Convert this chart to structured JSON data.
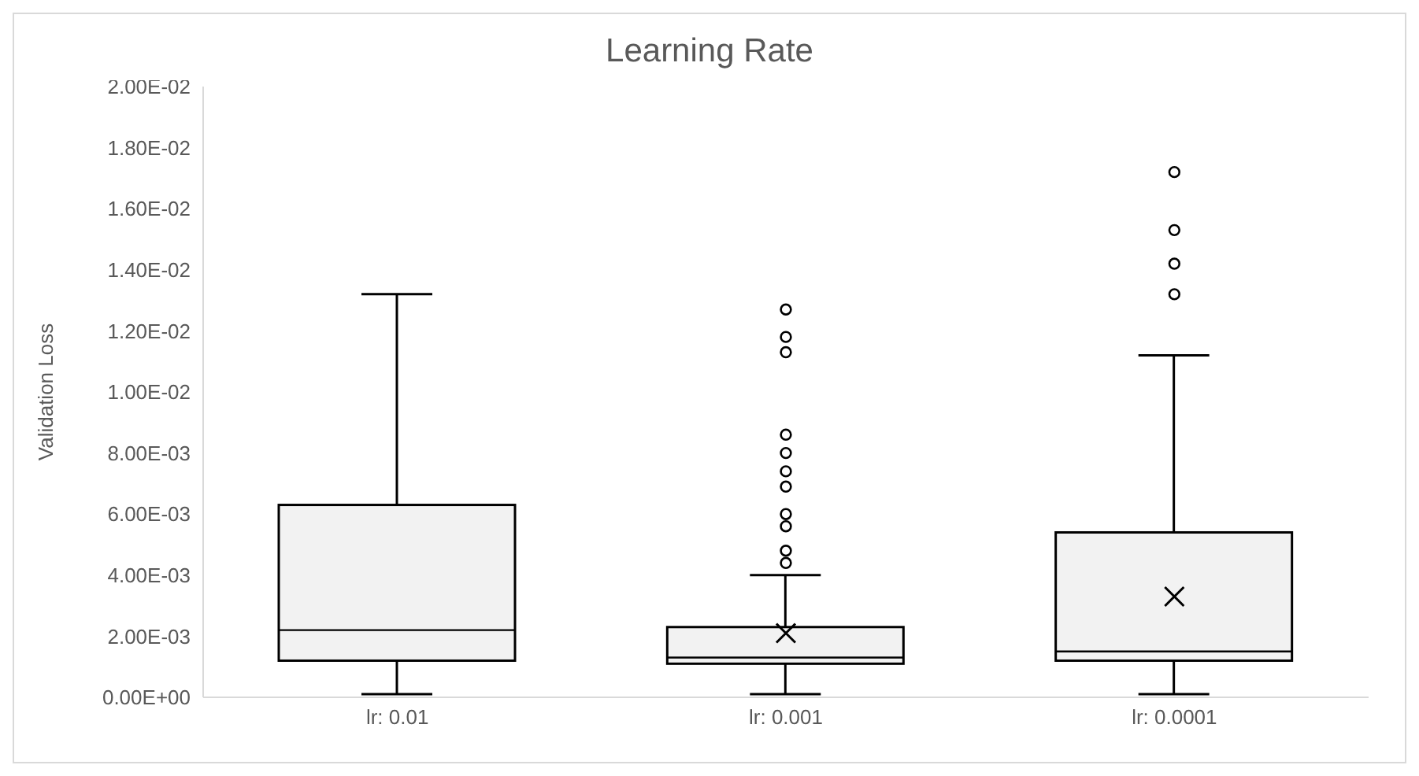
{
  "chart_data": {
    "type": "box",
    "title": "Learning Rate",
    "ylabel": "Validation Loss",
    "categories": [
      "lr: 0.01",
      "lr: 0.001",
      "lr: 0.0001"
    ],
    "color": "#f2f2f2",
    "boxes": [
      {
        "low": 0.0001,
        "q1": 0.0012,
        "median": 0.0022,
        "q3": 0.0063,
        "high": 0.0132
      },
      {
        "low": 0.0001,
        "q1": 0.0011,
        "median": 0.0013,
        "q3": 0.0023,
        "high": 0.004,
        "mean": 0.0021,
        "outliers": [
          0.0127,
          0.0118,
          0.0113,
          0.0086,
          0.008,
          0.0074,
          0.0069,
          0.006,
          0.0056,
          0.0048,
          0.0044
        ]
      },
      {
        "low": 0.0001,
        "q1": 0.0012,
        "median": 0.0015,
        "q3": 0.0054,
        "high": 0.0112,
        "mean": 0.0033,
        "outliers": [
          0.0172,
          0.0153,
          0.0142,
          0.0132
        ]
      }
    ],
    "ylim": [
      0,
      0.02
    ],
    "yticks": [
      {
        "value": 0,
        "label": "0.00E+00"
      },
      {
        "value": 0.002,
        "label": "2.00E-03"
      },
      {
        "value": 0.004,
        "label": "4.00E-03"
      },
      {
        "value": 0.006,
        "label": "6.00E-03"
      },
      {
        "value": 0.008,
        "label": "8.00E-03"
      },
      {
        "value": 0.01,
        "label": "1.00E-02"
      },
      {
        "value": 0.012,
        "label": "1.20E-02"
      },
      {
        "value": 0.014,
        "label": "1.40E-02"
      },
      {
        "value": 0.016,
        "label": "1.60E-02"
      },
      {
        "value": 0.018,
        "label": "1.80E-02"
      },
      {
        "value": 0.02,
        "label": "2.00E-02"
      }
    ]
  }
}
